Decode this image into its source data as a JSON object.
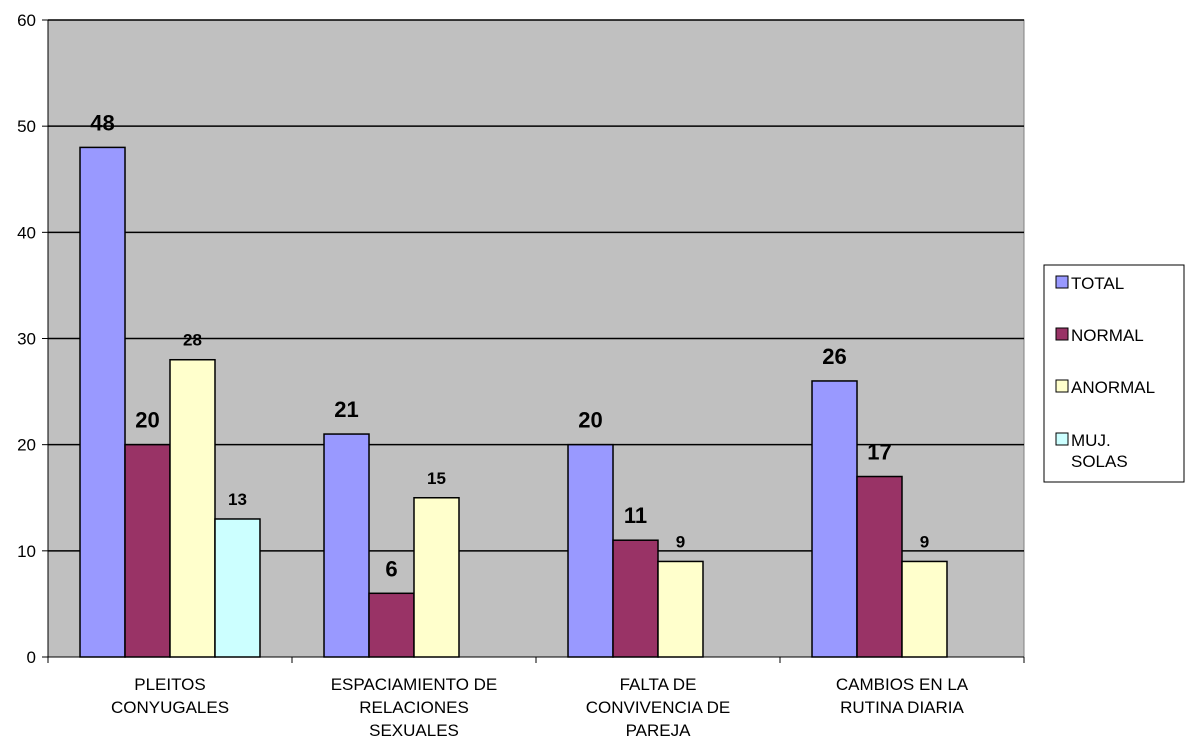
{
  "chart_data": {
    "type": "bar",
    "categories": [
      [
        "PLEITOS",
        "CONYUGALES"
      ],
      [
        "ESPACIAMIENTO DE",
        "RELACIONES",
        "SEXUALES"
      ],
      [
        "FALTA DE",
        "CONVIVENCIA  DE",
        "PAREJA"
      ],
      [
        "CAMBIOS EN LA",
        "RUTINA DIARIA"
      ]
    ],
    "series": [
      {
        "name": "TOTAL",
        "color": "#9999ff",
        "values": [
          48,
          21,
          20,
          26
        ]
      },
      {
        "name": "NORMAL",
        "color": "#993366",
        "values": [
          20,
          6,
          11,
          17
        ]
      },
      {
        "name": "ANORMAL",
        "color": "#ffffcc",
        "values": [
          28,
          15,
          9,
          9
        ]
      },
      {
        "name": "MUJ. SOLAS",
        "color": "#ccffff",
        "values": [
          13,
          null,
          null,
          null
        ]
      }
    ],
    "data_labels": [
      [
        "48",
        "21",
        "20",
        "26"
      ],
      [
        "20",
        "6",
        "11",
        "17"
      ],
      [
        "28",
        "15",
        "9",
        "9"
      ],
      [
        "13",
        "",
        "",
        ""
      ]
    ],
    "legend_labels": [
      [
        "TOTAL"
      ],
      [
        "NORMAL"
      ],
      [
        "ANORMAL"
      ],
      [
        "MUJ.",
        "SOLAS"
      ]
    ],
    "yticks": [
      "0",
      "10",
      "20",
      "30",
      "40",
      "50",
      "60"
    ],
    "ylim": [
      0,
      60
    ],
    "ytick_step": 10,
    "grid": true,
    "plot_background": "#c0c0c0",
    "legend_position": "right"
  }
}
